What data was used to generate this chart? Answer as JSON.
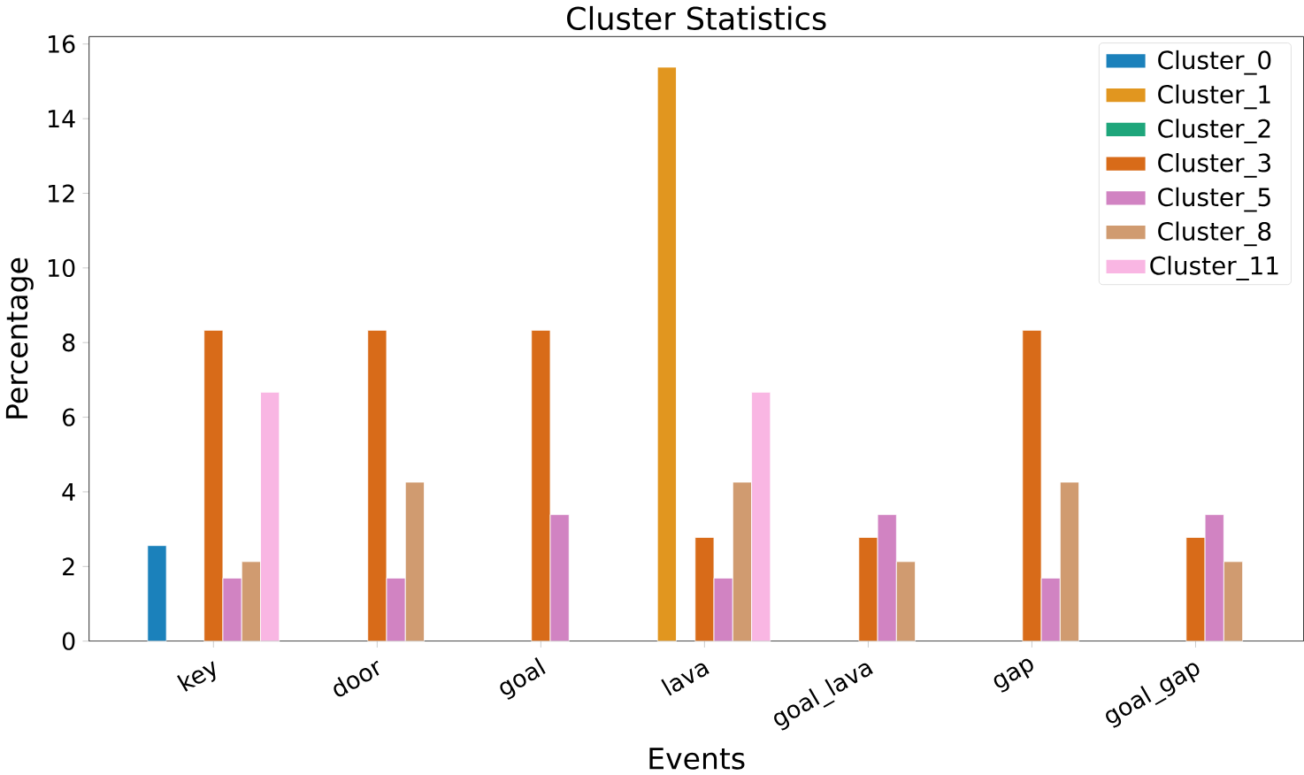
{
  "chart_data": {
    "type": "bar",
    "title": "Cluster Statistics",
    "xlabel": "Events",
    "ylabel": "Percentage",
    "categories": [
      "key",
      "door",
      "goal",
      "lava",
      "goal_lava",
      "gap",
      "goal_gap"
    ],
    "series": [
      {
        "name": "Cluster_0",
        "color": "#1b81bb",
        "values": [
          2.56,
          null,
          null,
          null,
          null,
          null,
          null
        ]
      },
      {
        "name": "Cluster_1",
        "color": "#e1961f",
        "values": [
          null,
          null,
          null,
          15.38,
          null,
          null,
          null
        ]
      },
      {
        "name": "Cluster_2",
        "color": "#1ea67b",
        "values": [
          null,
          null,
          null,
          null,
          null,
          null,
          null
        ]
      },
      {
        "name": "Cluster_3",
        "color": "#d86b19",
        "values": [
          8.33,
          8.33,
          8.33,
          2.78,
          2.78,
          8.33,
          2.78
        ]
      },
      {
        "name": "Cluster_5",
        "color": "#d183c2",
        "values": [
          1.69,
          1.69,
          3.39,
          1.69,
          3.39,
          1.69,
          3.39
        ]
      },
      {
        "name": "Cluster_8",
        "color": "#d09b70",
        "values": [
          2.13,
          4.26,
          null,
          4.26,
          2.13,
          4.26,
          2.13
        ]
      },
      {
        "name": "Cluster_11",
        "color": "#f9b6e3",
        "values": [
          6.67,
          null,
          null,
          6.67,
          null,
          null,
          null
        ]
      }
    ],
    "ylim": [
      0,
      16.2
    ],
    "yticks": [
      0,
      2,
      4,
      6,
      8,
      10,
      12,
      14,
      16
    ],
    "legend": "top right",
    "grid": false
  }
}
